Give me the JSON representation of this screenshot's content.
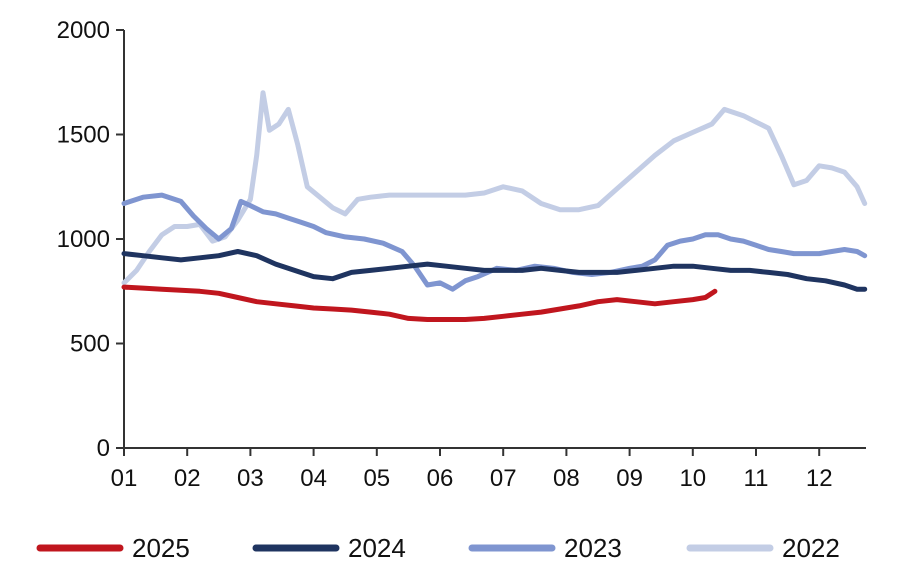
{
  "chart_data": {
    "type": "line",
    "title": "",
    "xlabel": "",
    "ylabel": "",
    "x_ticks": [
      "01",
      "02",
      "03",
      "04",
      "05",
      "06",
      "07",
      "08",
      "09",
      "10",
      "11",
      "12"
    ],
    "y_ticks": [
      "0",
      "500",
      "1000",
      "1500",
      "2000"
    ],
    "xlim": [
      1,
      12.75
    ],
    "ylim": [
      0,
      2000
    ],
    "grid": false,
    "legend_position": "bottom",
    "series": [
      {
        "name": "2022",
        "color": "#c3cde5",
        "x": [
          1.0,
          1.2,
          1.4,
          1.6,
          1.8,
          2.0,
          2.2,
          2.4,
          2.6,
          2.8,
          3.0,
          3.1,
          3.2,
          3.3,
          3.45,
          3.6,
          3.75,
          3.9,
          4.1,
          4.3,
          4.5,
          4.7,
          4.9,
          5.2,
          5.5,
          5.8,
          6.1,
          6.4,
          6.7,
          7.0,
          7.3,
          7.6,
          7.9,
          8.2,
          8.5,
          8.8,
          9.1,
          9.4,
          9.7,
          10.0,
          10.3,
          10.5,
          10.8,
          11.0,
          11.2,
          11.4,
          11.6,
          11.8,
          12.0,
          12.2,
          12.4,
          12.6,
          12.72
        ],
        "y": [
          790,
          850,
          940,
          1020,
          1060,
          1060,
          1070,
          990,
          1010,
          1090,
          1190,
          1400,
          1700,
          1520,
          1550,
          1620,
          1450,
          1250,
          1200,
          1150,
          1120,
          1190,
          1200,
          1210,
          1210,
          1210,
          1210,
          1210,
          1220,
          1250,
          1230,
          1170,
          1140,
          1140,
          1160,
          1240,
          1320,
          1400,
          1470,
          1510,
          1550,
          1620,
          1590,
          1560,
          1530,
          1400,
          1260,
          1280,
          1350,
          1340,
          1320,
          1250,
          1170
        ]
      },
      {
        "name": "2023",
        "color": "#7f95d0",
        "x": [
          1.0,
          1.3,
          1.6,
          1.9,
          2.1,
          2.3,
          2.5,
          2.7,
          2.85,
          3.0,
          3.2,
          3.4,
          3.6,
          3.8,
          4.0,
          4.2,
          4.5,
          4.8,
          5.1,
          5.4,
          5.6,
          5.8,
          6.0,
          6.2,
          6.4,
          6.6,
          6.9,
          7.2,
          7.5,
          7.8,
          8.1,
          8.4,
          8.7,
          9.0,
          9.2,
          9.4,
          9.6,
          9.8,
          10.0,
          10.2,
          10.4,
          10.6,
          10.8,
          11.0,
          11.2,
          11.4,
          11.6,
          11.8,
          12.0,
          12.2,
          12.4,
          12.6,
          12.72
        ],
        "y": [
          1170,
          1200,
          1210,
          1180,
          1110,
          1050,
          1000,
          1050,
          1180,
          1160,
          1130,
          1120,
          1100,
          1080,
          1060,
          1030,
          1010,
          1000,
          980,
          940,
          870,
          780,
          790,
          760,
          800,
          820,
          860,
          850,
          870,
          860,
          840,
          830,
          840,
          860,
          870,
          900,
          970,
          990,
          1000,
          1020,
          1020,
          1000,
          990,
          970,
          950,
          940,
          930,
          930,
          930,
          940,
          950,
          940,
          920
        ]
      },
      {
        "name": "2024",
        "color": "#1f3460",
        "x": [
          1.0,
          1.3,
          1.6,
          1.9,
          2.2,
          2.5,
          2.8,
          3.1,
          3.4,
          3.7,
          4.0,
          4.3,
          4.6,
          4.9,
          5.2,
          5.5,
          5.8,
          6.1,
          6.4,
          6.7,
          7.0,
          7.3,
          7.6,
          7.9,
          8.2,
          8.5,
          8.8,
          9.1,
          9.4,
          9.7,
          10.0,
          10.3,
          10.6,
          10.9,
          11.2,
          11.5,
          11.8,
          12.1,
          12.4,
          12.6,
          12.72
        ],
        "y": [
          930,
          920,
          910,
          900,
          910,
          920,
          940,
          920,
          880,
          850,
          820,
          810,
          840,
          850,
          860,
          870,
          880,
          870,
          860,
          850,
          850,
          850,
          860,
          850,
          840,
          840,
          840,
          850,
          860,
          870,
          870,
          860,
          850,
          850,
          840,
          830,
          810,
          800,
          780,
          760,
          760
        ]
      },
      {
        "name": "2025",
        "color": "#c0161e",
        "x": [
          1.0,
          1.3,
          1.6,
          1.9,
          2.2,
          2.5,
          2.8,
          3.1,
          3.4,
          3.7,
          4.0,
          4.3,
          4.6,
          4.9,
          5.2,
          5.5,
          5.8,
          6.1,
          6.4,
          6.7,
          7.0,
          7.3,
          7.6,
          7.9,
          8.2,
          8.5,
          8.8,
          9.1,
          9.4,
          9.7,
          10.0,
          10.2,
          10.35
        ],
        "y": [
          770,
          765,
          760,
          755,
          750,
          740,
          720,
          700,
          690,
          680,
          670,
          665,
          660,
          650,
          640,
          620,
          615,
          615,
          615,
          620,
          630,
          640,
          650,
          665,
          680,
          700,
          710,
          700,
          690,
          700,
          710,
          720,
          750
        ]
      }
    ],
    "legend": [
      {
        "name": "2025",
        "color": "#c0161e"
      },
      {
        "name": "2024",
        "color": "#1f3460"
      },
      {
        "name": "2023",
        "color": "#7f95d0"
      },
      {
        "name": "2022",
        "color": "#c3cde5"
      }
    ]
  }
}
